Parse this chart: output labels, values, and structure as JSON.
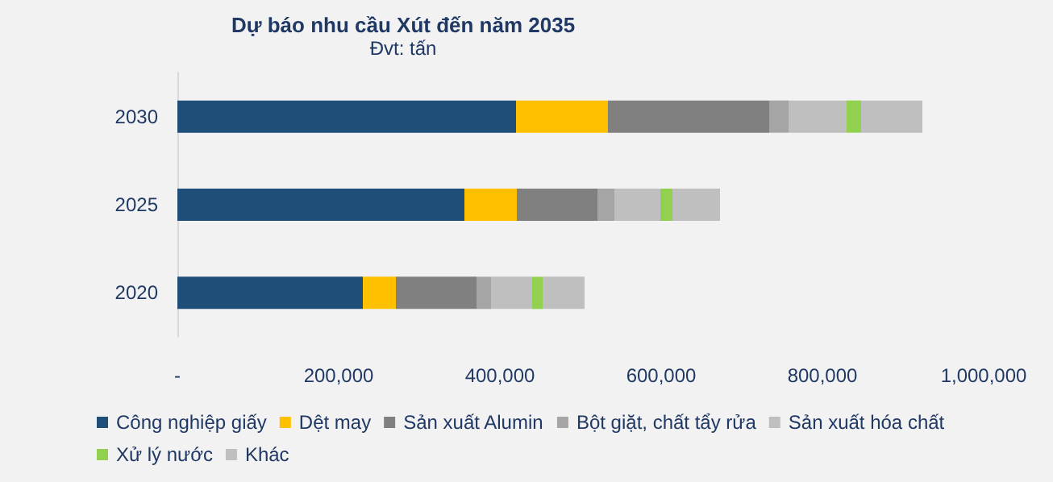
{
  "chart_data": {
    "type": "bar",
    "orientation": "horizontal",
    "stacked": true,
    "title": "Dự báo nhu cầu Xút đến năm 2035",
    "subtitle": "Đvt: tấn",
    "categories": [
      "2030",
      "2025",
      "2020"
    ],
    "series": [
      {
        "name": "Công nghiệp giấy",
        "color": "#1f4e79",
        "values": [
          420000,
          356000,
          230000
        ]
      },
      {
        "name": "Dệt may",
        "color": "#ffc000",
        "values": [
          114000,
          65000,
          41000
        ]
      },
      {
        "name": "Sản xuất Alumin",
        "color": "#808080",
        "values": [
          200000,
          100000,
          100000
        ]
      },
      {
        "name": "Bột giặt, chất tẩy rửa",
        "color": "#a5a5a5",
        "values": [
          24000,
          21000,
          18000
        ]
      },
      {
        "name": "Sản xuất hóa chất",
        "color": "#bfbfbf",
        "values": [
          72000,
          57000,
          51000
        ]
      },
      {
        "name": "Xử lý nước",
        "color": "#92d050",
        "values": [
          18000,
          15000,
          13000
        ]
      },
      {
        "name": "Khác",
        "color": "#bfbfbf",
        "values": [
          76000,
          59000,
          52000
        ]
      }
    ],
    "xlim": [
      0,
      1000000
    ],
    "xticks": [
      {
        "value": 0,
        "label": "-"
      },
      {
        "value": 200000,
        "label": "200,000"
      },
      {
        "value": 400000,
        "label": "400,000"
      },
      {
        "value": 600000,
        "label": "600,000"
      },
      {
        "value": 800000,
        "label": "800,000"
      },
      {
        "value": 1000000,
        "label": "1,000,000"
      }
    ],
    "grid": false,
    "legend": "bottom"
  }
}
